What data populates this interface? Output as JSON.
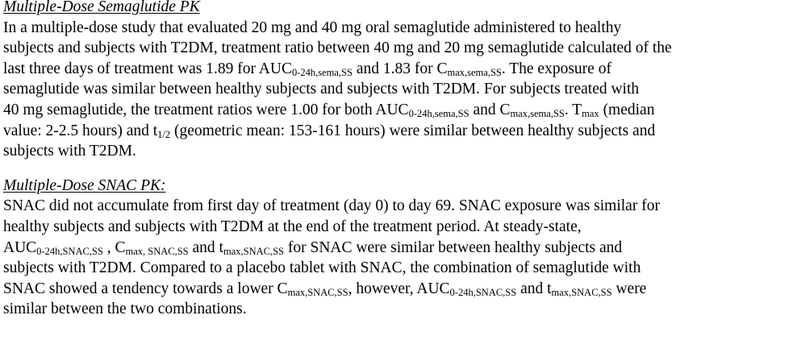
{
  "section1": {
    "heading": "Multiple-Dose Semaglutide PK",
    "lines": [
      [
        {
          "t": "In a multiple-dose study that evaluated 20 mg and 40 mg oral semaglutide administered to healthy"
        }
      ],
      [
        {
          "t": "subjects and subjects with T2DM, treatment ratio between 40 mg and 20 mg semaglutide calculated of the"
        }
      ],
      [
        {
          "t": "last three days of treatment was 1.89 for AUC"
        },
        {
          "s": "0-24h,sema,SS"
        },
        {
          "t": " and 1.83 for C"
        },
        {
          "s": "max,sema,SS"
        },
        {
          "t": ".  The exposure of"
        }
      ],
      [
        {
          "t": "semaglutide was similar between healthy subjects and subjects with T2DM. For subjects treated with"
        }
      ],
      [
        {
          "t": "40 mg semaglutide, the treatment ratios were 1.00 for both AUC"
        },
        {
          "s": "0-24h,sema,SS"
        },
        {
          "t": " and C"
        },
        {
          "s": "max,sema,SS"
        },
        {
          "t": ". T"
        },
        {
          "s": "max"
        },
        {
          "t": " (median"
        }
      ],
      [
        {
          "t": "value: 2-2.5 hours) and t"
        },
        {
          "s": "1/2"
        },
        {
          "t": " (geometric mean: 153-161 hours) were similar between healthy subjects and"
        }
      ],
      [
        {
          "t": "subjects with T2DM."
        }
      ]
    ]
  },
  "section2": {
    "heading": "Multiple-Dose SNAC PK:",
    "lines": [
      [
        {
          "t": "SNAC did not accumulate from first day of treatment (day 0) to day 69.  SNAC exposure was similar for"
        }
      ],
      [
        {
          "t": "healthy subjects and subjects with T2DM at the end of the treatment period.  At steady-state,"
        }
      ],
      [
        {
          "t": "AUC"
        },
        {
          "s": "0-24h,SNAC,SS"
        },
        {
          "t": " , C"
        },
        {
          "s": "max, SNAC,SS"
        },
        {
          "t": " and t"
        },
        {
          "s": "max,SNAC,SS"
        },
        {
          "t": " for SNAC were similar between healthy subjects and"
        }
      ],
      [
        {
          "t": "subjects with T2DM.  Compared to a placebo tablet with SNAC, the combination of semaglutide with"
        }
      ],
      [
        {
          "t": "SNAC showed a tendency towards a lower C"
        },
        {
          "s": "max,SNAC,SS"
        },
        {
          "t": ", however, AUC"
        },
        {
          "s": "0-24h,SNAC,SS"
        },
        {
          "t": " and t"
        },
        {
          "s": "max,SNAC,SS"
        },
        {
          "t": " were"
        }
      ],
      [
        {
          "t": "similar between the two combinations."
        }
      ]
    ]
  }
}
